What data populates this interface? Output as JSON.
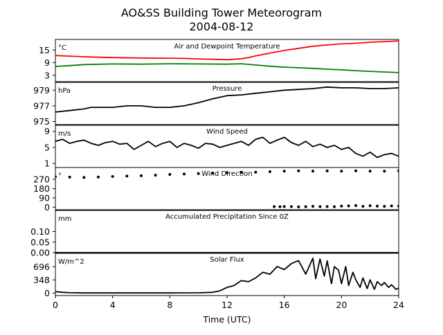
{
  "title_line1": "AO&SS Building Tower Meteorogram",
  "title_line2": "2004-08-12",
  "xlabel": "Time (UTC)",
  "x_ticks": [
    "0",
    "4",
    "8",
    "12",
    "16",
    "20",
    "24"
  ],
  "chart_data": [
    {
      "type": "line",
      "title": "Air and Dewpoint Temperature",
      "unit": "°C",
      "ylim": [
        0,
        20
      ],
      "yticks": [
        3,
        9,
        15
      ],
      "xlim": [
        0,
        24
      ],
      "series": [
        {
          "color": "#ff0000",
          "x": [
            0,
            1,
            2,
            4,
            6,
            8,
            9,
            10,
            11,
            12,
            13,
            13.5,
            14,
            15,
            16,
            17,
            18,
            19,
            20,
            21,
            22,
            23,
            24
          ],
          "values": [
            12.4,
            12.1,
            11.8,
            11.4,
            11.2,
            11.1,
            11.0,
            10.8,
            10.6,
            10.4,
            10.9,
            11.4,
            12.2,
            13.5,
            14.8,
            15.8,
            16.8,
            17.4,
            17.9,
            18.2,
            18.7,
            19.0,
            19.3
          ]
        },
        {
          "color": "#008000",
          "x": [
            0,
            1,
            2,
            4,
            6,
            8,
            10,
            12,
            13,
            14,
            15,
            16,
            17,
            18,
            19,
            20,
            21,
            22,
            23,
            24
          ],
          "values": [
            7.2,
            7.6,
            8.1,
            8.4,
            8.3,
            8.5,
            8.4,
            8.3,
            8.5,
            7.9,
            7.3,
            6.9,
            6.6,
            6.3,
            5.9,
            5.6,
            5.2,
            4.9,
            4.6,
            4.3
          ]
        }
      ]
    },
    {
      "type": "line",
      "title": "Pressure",
      "unit": "hPa",
      "ylim": [
        974.6,
        980.0
      ],
      "yticks": [
        975,
        977,
        979
      ],
      "xlim": [
        0,
        24
      ],
      "series": [
        {
          "color": "#000000",
          "x": [
            0,
            1,
            2,
            2.5,
            3,
            4,
            5,
            6,
            7,
            8,
            9,
            10,
            11,
            12,
            13,
            14,
            15,
            16,
            17,
            18,
            19,
            20,
            21,
            22,
            23,
            24
          ],
          "values": [
            976.2,
            976.4,
            976.6,
            976.8,
            976.8,
            976.8,
            977.0,
            977.0,
            976.8,
            976.8,
            977.0,
            977.4,
            977.9,
            978.3,
            978.4,
            978.6,
            978.8,
            979.0,
            979.1,
            979.2,
            979.4,
            979.3,
            979.3,
            979.2,
            979.2,
            979.3
          ]
        }
      ]
    },
    {
      "type": "line",
      "title": "Wind Speed",
      "unit": "m/s",
      "ylim": [
        0,
        10.5
      ],
      "yticks": [
        1,
        5,
        9
      ],
      "xlim": [
        0,
        24
      ],
      "series": [
        {
          "color": "#000000",
          "x": [
            0,
            0.5,
            1,
            1.5,
            2,
            2.5,
            3,
            3.5,
            4,
            4.5,
            5,
            5.5,
            6,
            6.5,
            7,
            7.5,
            8,
            8.5,
            9,
            9.5,
            10,
            10.5,
            11,
            11.5,
            12,
            12.5,
            13,
            13.5,
            14,
            14.5,
            15,
            15.5,
            16,
            16.5,
            17,
            17.5,
            18,
            18.5,
            19,
            19.5,
            20,
            20.5,
            21,
            21.5,
            22,
            22.5,
            23,
            23.5,
            24
          ],
          "values": [
            6.5,
            7.0,
            6.0,
            6.5,
            6.8,
            6.0,
            5.5,
            6.2,
            6.5,
            5.8,
            6.0,
            4.5,
            5.5,
            6.5,
            5.2,
            6.0,
            6.5,
            5.0,
            6.0,
            5.5,
            4.8,
            6.0,
            5.8,
            5.0,
            5.5,
            6.0,
            6.5,
            5.5,
            7.0,
            7.5,
            6.0,
            6.8,
            7.5,
            6.2,
            5.5,
            6.5,
            5.2,
            5.8,
            5.0,
            5.5,
            4.5,
            5.0,
            3.5,
            2.8,
            3.8,
            2.5,
            3.2,
            3.5,
            2.8
          ]
        }
      ]
    },
    {
      "type": "scatter",
      "title": "Wind Direction",
      "unit": "°",
      "ylim": [
        -25,
        385
      ],
      "yticks": [
        0,
        90,
        180,
        270
      ],
      "xlim": [
        0,
        24
      ],
      "series": [
        {
          "color": "#000000",
          "x": [
            0,
            1,
            2,
            3,
            4,
            5,
            6,
            7,
            8,
            9,
            10,
            11,
            12,
            13,
            14,
            15,
            16,
            17,
            18,
            19,
            20,
            21,
            22,
            23,
            24
          ],
          "values": [
            295,
            292,
            288,
            293,
            298,
            302,
            305,
            310,
            318,
            322,
            326,
            330,
            335,
            338,
            340,
            345,
            350,
            352,
            350,
            352,
            350,
            352,
            350,
            350,
            352
          ]
        },
        {
          "color": "#000000",
          "x": [
            15.3,
            15.7,
            16,
            16.5,
            17,
            17.5,
            18,
            18.5,
            19,
            19.5,
            20,
            20.5,
            21,
            21.5,
            22,
            22.5,
            23,
            23.5,
            24
          ],
          "values": [
            5,
            4,
            6,
            5,
            3,
            4,
            8,
            5,
            6,
            4,
            10,
            12,
            15,
            8,
            14,
            10,
            8,
            12,
            10
          ]
        }
      ]
    },
    {
      "type": "line",
      "title": "Accumulated Precipitation Since 0Z",
      "unit": "mm",
      "ylim": [
        0,
        0.2
      ],
      "yticks": [
        0.0,
        0.05,
        0.1
      ],
      "ytick_labels": [
        "0.00",
        "0.05",
        "0.10"
      ],
      "xlim": [
        0,
        24
      ],
      "series": [
        {
          "color": "#000000",
          "x": [
            0,
            24
          ],
          "values": [
            0,
            0
          ]
        }
      ]
    },
    {
      "type": "line",
      "title": "Solar Flux",
      "unit": "W/m^2",
      "ylim": [
        -65,
        1050
      ],
      "yticks": [
        0,
        348,
        696
      ],
      "xlim": [
        0,
        24
      ],
      "series": [
        {
          "color": "#000000",
          "x": [
            0,
            0.5,
            1,
            2,
            4,
            6,
            8,
            10,
            11,
            11.5,
            12,
            12.5,
            13,
            13.5,
            14,
            14.5,
            15,
            15.5,
            16,
            16.5,
            17,
            17.5,
            18,
            18.2,
            18.5,
            18.8,
            19,
            19.3,
            19.5,
            19.8,
            20,
            20.3,
            20.5,
            20.8,
            21,
            21.3,
            21.5,
            21.8,
            22,
            22.3,
            22.5,
            22.8,
            23,
            23.3,
            23.5,
            23.8,
            24
          ],
          "values": [
            40,
            20,
            10,
            5,
            5,
            5,
            5,
            8,
            20,
            60,
            150,
            200,
            330,
            300,
            400,
            550,
            500,
            700,
            620,
            780,
            860,
            500,
            920,
            380,
            900,
            450,
            850,
            250,
            700,
            600,
            250,
            700,
            200,
            550,
            350,
            150,
            400,
            120,
            350,
            100,
            300,
            200,
            280,
            150,
            220,
            100,
            130
          ]
        }
      ]
    }
  ]
}
